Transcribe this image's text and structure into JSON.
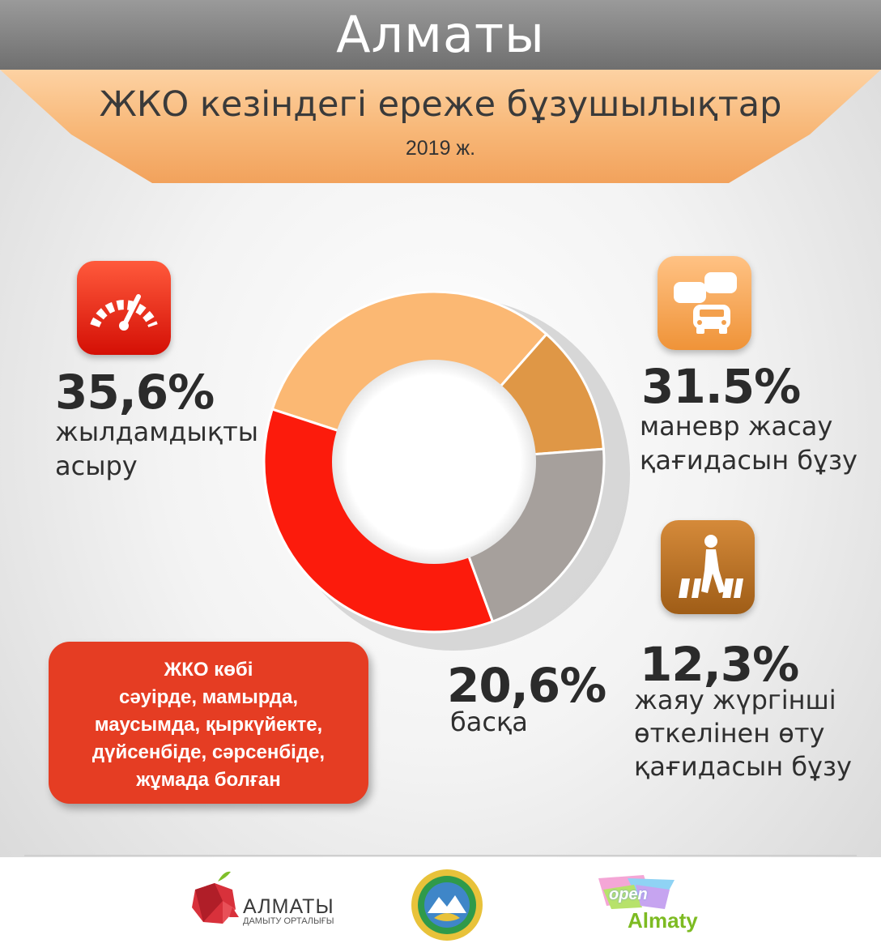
{
  "header": {
    "city": "Алматы",
    "title": "ЖКО кезіндегі ереже бұзушылықтар",
    "subtitle": "2019 ж."
  },
  "chart_data": {
    "type": "pie",
    "variant": "donut",
    "title": "ЖКО кезіндегі ереже бұзушылықтар",
    "subtitle": "2019 ж.",
    "slices": [
      {
        "label": "маневр жасау қағидасын бұзу",
        "value": 31.5,
        "value_label": "31,5%",
        "color": "#fbb873"
      },
      {
        "label": "жаяу жүргінші өткелінен өту қағидасын бұзу",
        "value": 12.3,
        "value_label": "12,3%",
        "color": "#df9746"
      },
      {
        "label": "басқа",
        "value": 20.6,
        "value_label": "20,6%",
        "color": "#a6a09c"
      },
      {
        "label": "жылдамдықты асыру",
        "value": 35.6,
        "value_label": "35,6%",
        "color": "#fc1b0c"
      }
    ]
  },
  "labels": {
    "speed": {
      "pct": "35,6%",
      "line1": "жылдамдықты",
      "line2": "асыру",
      "icon": "speedometer-icon"
    },
    "maneuver": {
      "pct": "31.5%",
      "line1": "маневр жасау",
      "line2": "қағидасын бұзу",
      "icon": "cars-traffic-icon"
    },
    "pedestrian": {
      "pct": "12,3%",
      "line1": "жаяу жүргінші",
      "line2": "өткелінен өту",
      "line3": "қағидасын бұзу",
      "icon": "pedestrian-crossing-icon"
    },
    "other": {
      "pct": "20,6%",
      "line1": "басқа"
    }
  },
  "note": {
    "lines": [
      "ЖКО көбі",
      "сәуірде, мамырда,",
      "маусымда, қыркүйекте,",
      "дүйсенбіде, сәрсенбіде,",
      "жұмада болған"
    ]
  },
  "footer": {
    "logo1_main": "АЛМАТЫ",
    "logo1_sub": "ДАМЫТУ ОРТАЛЫҒЫ",
    "logo3_open": "open",
    "logo3_city": "Almaty"
  },
  "colors": {
    "header_bar": "#7f7f7f",
    "banner": "#f8b97a",
    "note_box": "#e53d23",
    "speed_icon_bg": "#e8230f",
    "maneuver_icon_bg": "#f3a04d",
    "pedestrian_icon_bg": "#b8701e"
  }
}
